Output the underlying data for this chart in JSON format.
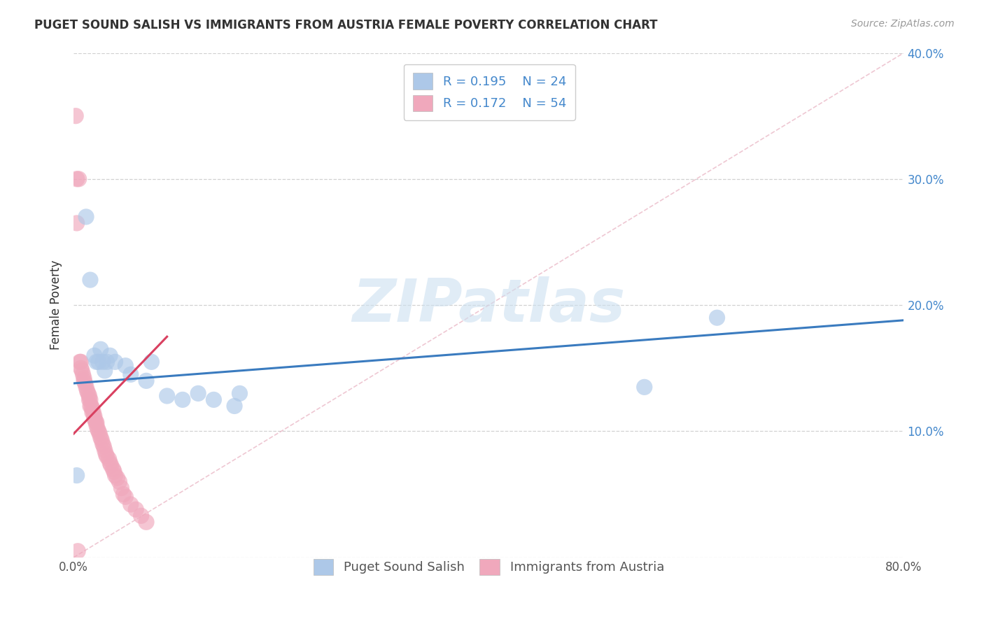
{
  "title": "PUGET SOUND SALISH VS IMMIGRANTS FROM AUSTRIA FEMALE POVERTY CORRELATION CHART",
  "source": "Source: ZipAtlas.com",
  "ylabel": "Female Poverty",
  "series1_name": "Puget Sound Salish",
  "series2_name": "Immigrants from Austria",
  "series1_color": "#adc8e8",
  "series2_color": "#f0a8bc",
  "series1_line_color": "#3a7bbf",
  "series2_line_color": "#d94060",
  "legend_text_color": "#4488cc",
  "R1": 0.195,
  "N1": 24,
  "R2": 0.172,
  "N2": 54,
  "xlim": [
    0.0,
    0.8
  ],
  "ylim": [
    0.0,
    0.4
  ],
  "watermark_text": "ZIPatlas",
  "watermark_color": "#cce0f0",
  "bg_color": "#ffffff",
  "series1_x": [
    0.003,
    0.012,
    0.016,
    0.02,
    0.022,
    0.024,
    0.026,
    0.028,
    0.03,
    0.032,
    0.035,
    0.04,
    0.05,
    0.055,
    0.07,
    0.075,
    0.09,
    0.105,
    0.12,
    0.135,
    0.155,
    0.16,
    0.55,
    0.62
  ],
  "series1_y": [
    0.065,
    0.27,
    0.22,
    0.16,
    0.155,
    0.155,
    0.165,
    0.155,
    0.148,
    0.155,
    0.16,
    0.155,
    0.152,
    0.145,
    0.14,
    0.155,
    0.128,
    0.125,
    0.13,
    0.125,
    0.12,
    0.13,
    0.135,
    0.19
  ],
  "series2_x": [
    0.002,
    0.003,
    0.005,
    0.006,
    0.007,
    0.007,
    0.008,
    0.009,
    0.01,
    0.01,
    0.011,
    0.012,
    0.013,
    0.014,
    0.015,
    0.015,
    0.016,
    0.016,
    0.017,
    0.018,
    0.018,
    0.019,
    0.02,
    0.02,
    0.021,
    0.022,
    0.022,
    0.023,
    0.024,
    0.025,
    0.026,
    0.027,
    0.028,
    0.029,
    0.03,
    0.031,
    0.032,
    0.034,
    0.035,
    0.036,
    0.038,
    0.039,
    0.04,
    0.042,
    0.044,
    0.046,
    0.048,
    0.05,
    0.055,
    0.06,
    0.065,
    0.07,
    0.003,
    0.004
  ],
  "series2_y": [
    0.35,
    0.3,
    0.3,
    0.155,
    0.155,
    0.15,
    0.148,
    0.145,
    0.142,
    0.14,
    0.138,
    0.135,
    0.132,
    0.13,
    0.128,
    0.125,
    0.125,
    0.12,
    0.12,
    0.118,
    0.115,
    0.115,
    0.112,
    0.11,
    0.108,
    0.107,
    0.105,
    0.102,
    0.1,
    0.098,
    0.095,
    0.093,
    0.09,
    0.088,
    0.085,
    0.082,
    0.08,
    0.078,
    0.075,
    0.073,
    0.07,
    0.068,
    0.065,
    0.063,
    0.06,
    0.055,
    0.05,
    0.048,
    0.042,
    0.038,
    0.033,
    0.028,
    0.265,
    0.005
  ],
  "trend1_x": [
    0.0,
    0.8
  ],
  "trend1_y": [
    0.138,
    0.188
  ],
  "trend2_x": [
    0.0,
    0.09
  ],
  "trend2_y": [
    0.098,
    0.175
  ],
  "ref_line_x": [
    0.0,
    0.8
  ],
  "ref_line_y": [
    0.0,
    0.4
  ]
}
